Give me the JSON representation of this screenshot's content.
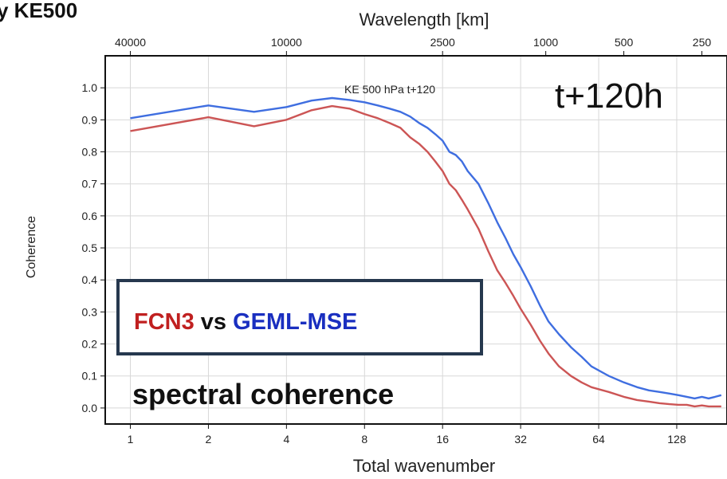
{
  "slide_title": "y KE500",
  "annotations": {
    "lead_time": "t+120h",
    "panel_label": "KE 500 hPa t+120",
    "model_a": "FCN3",
    "vs": "vs",
    "model_b": "GEML-MSE",
    "subtitle": "spectral coherence"
  },
  "colors": {
    "fcn3": "#cc5555",
    "geml_mse": "#3f6ee0",
    "fcn3_text": "#c02020",
    "geml_text": "#1a2fc0",
    "box_border": "#26384e"
  },
  "chart_data": {
    "type": "line",
    "xlabel": "Total wavenumber",
    "ylabel": "Coherence",
    "x2label": "Wavelength [km]",
    "xscale": "log2",
    "xlim": [
      0.8,
      200
    ],
    "ylim": [
      -0.05,
      1.1
    ],
    "grid": true,
    "x_ticks": [
      1,
      2,
      4,
      8,
      16,
      32,
      64,
      128
    ],
    "x_tick_labels": [
      "1",
      "2",
      "4",
      "8",
      "16",
      "32",
      "64",
      "128"
    ],
    "x2_ticks": [
      1,
      4,
      16,
      40,
      80,
      160
    ],
    "x2_tick_labels": [
      "40000",
      "10000",
      "2500",
      "1000",
      "500",
      "250"
    ],
    "y_ticks": [
      0.0,
      0.1,
      0.2,
      0.3,
      0.4,
      0.5,
      0.6,
      0.7,
      0.8,
      0.9,
      1.0
    ],
    "y_tick_labels": [
      "0.0",
      "0.1",
      "0.2",
      "0.3",
      "0.4",
      "0.5",
      "0.6",
      "0.7",
      "0.8",
      "0.9",
      "1.0"
    ],
    "series": [
      {
        "name": "GEML-MSE",
        "color": "#3f6ee0",
        "x": [
          1,
          2,
          3,
          4,
          5,
          6,
          7,
          8,
          9,
          10,
          11,
          12,
          13,
          14,
          15,
          16,
          17,
          18,
          19,
          20,
          22,
          24,
          26,
          28,
          30,
          32,
          35,
          38,
          41,
          45,
          50,
          55,
          60,
          70,
          80,
          90,
          100,
          110,
          120,
          130,
          140,
          150,
          160,
          170,
          180,
          190
        ],
        "y": [
          0.905,
          0.945,
          0.925,
          0.94,
          0.96,
          0.968,
          0.962,
          0.955,
          0.945,
          0.935,
          0.925,
          0.91,
          0.89,
          0.875,
          0.855,
          0.835,
          0.8,
          0.79,
          0.77,
          0.74,
          0.7,
          0.64,
          0.58,
          0.53,
          0.48,
          0.44,
          0.38,
          0.32,
          0.27,
          0.23,
          0.19,
          0.16,
          0.13,
          0.1,
          0.08,
          0.065,
          0.055,
          0.05,
          0.045,
          0.04,
          0.035,
          0.03,
          0.035,
          0.03,
          0.035,
          0.04
        ]
      },
      {
        "name": "FCN3",
        "color": "#cc5555",
        "x": [
          1,
          2,
          3,
          4,
          5,
          6,
          7,
          8,
          9,
          10,
          11,
          12,
          13,
          14,
          15,
          16,
          17,
          18,
          19,
          20,
          22,
          24,
          26,
          28,
          30,
          32,
          35,
          38,
          41,
          45,
          50,
          55,
          60,
          70,
          80,
          90,
          100,
          110,
          120,
          130,
          140,
          150,
          160,
          170,
          180,
          190
        ],
        "y": [
          0.865,
          0.908,
          0.88,
          0.9,
          0.93,
          0.943,
          0.935,
          0.918,
          0.905,
          0.89,
          0.875,
          0.845,
          0.825,
          0.8,
          0.77,
          0.74,
          0.7,
          0.68,
          0.65,
          0.62,
          0.56,
          0.49,
          0.43,
          0.39,
          0.35,
          0.31,
          0.26,
          0.21,
          0.17,
          0.13,
          0.1,
          0.08,
          0.065,
          0.05,
          0.035,
          0.025,
          0.02,
          0.015,
          0.012,
          0.01,
          0.01,
          0.005,
          0.008,
          0.005,
          0.005,
          0.005
        ]
      }
    ]
  }
}
